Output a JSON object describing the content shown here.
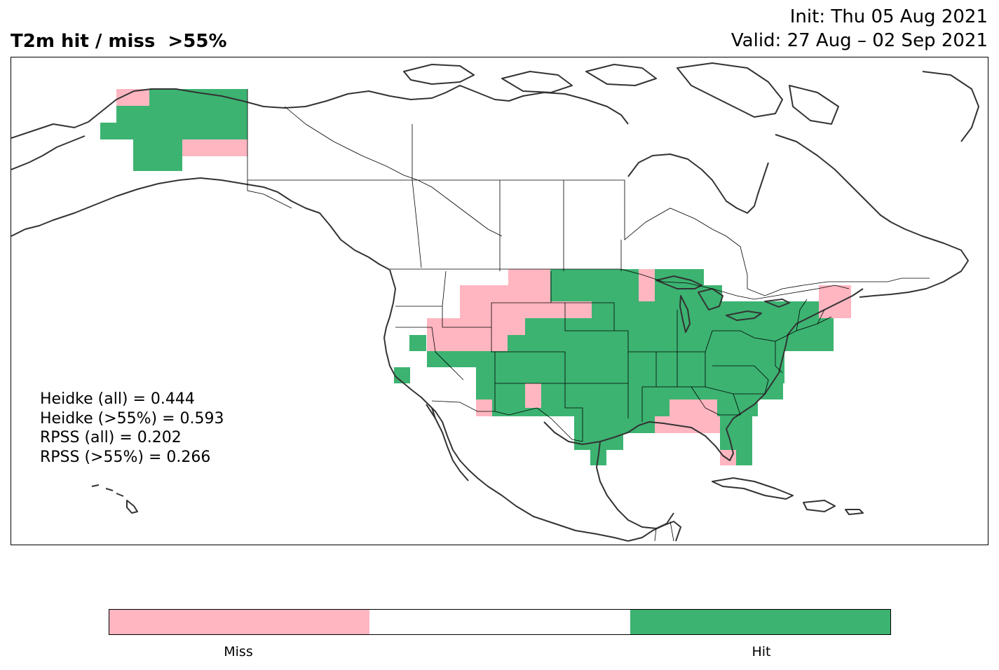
{
  "header": {
    "title": "T2m hit / miss  >55%",
    "init": "Init: Thu 05 Aug 2021",
    "valid": "Valid: 27 Aug – 02 Sep 2021"
  },
  "stats": [
    "Heidke (all) = 0.444",
    "Heidke (>55%) = 0.593",
    "RPSS (all) = 0.202",
    "RPSS (>55%) = 0.266"
  ],
  "colorbar": {
    "segments": [
      {
        "label": "Miss",
        "color": "#ffb6c1"
      },
      {
        "label": "",
        "color": "#ffffff"
      },
      {
        "label": "Hit",
        "color": "#3cb371"
      }
    ]
  },
  "colors": {
    "hit": "#3cb371",
    "miss": "#ffb6c1",
    "coast": "#333333",
    "border": "#000000"
  }
}
